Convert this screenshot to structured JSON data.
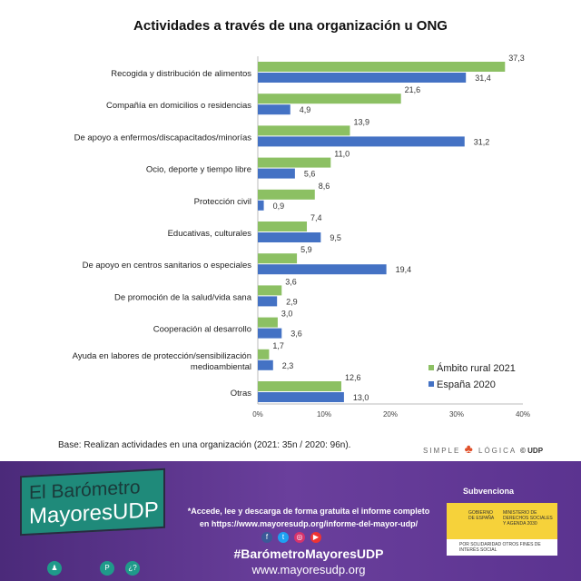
{
  "chart_data": {
    "type": "bar",
    "orientation": "horizontal",
    "title": "Actividades a través de una organización u ONG",
    "categories": [
      "Recogida y distribución de alimentos",
      "Compañía en domicilios o residencias",
      "De apoyo a enfermos/discapacitados/minorías",
      "Ocio, deporte y tiempo libre",
      "Protección civil",
      "Educativas, culturales",
      "De apoyo en centros sanitarios o especiales",
      "De promoción de la salud/vida sana",
      "Cooperación al desarrollo",
      "Ayuda en labores de protección/sensibilización medioambiental",
      "Otras"
    ],
    "series": [
      {
        "name": "Ámbito rural 2021",
        "color": "#8cc063",
        "values": [
          37.3,
          21.6,
          13.9,
          11.0,
          8.6,
          7.4,
          5.9,
          3.6,
          3.0,
          1.7,
          12.6
        ]
      },
      {
        "name": "España 2020",
        "color": "#4472c4",
        "values": [
          31.4,
          4.9,
          31.2,
          5.6,
          0.9,
          9.5,
          19.4,
          2.9,
          3.6,
          2.3,
          13.0
        ]
      }
    ],
    "xlim": [
      0,
      40
    ],
    "xticks": [
      "0%",
      "10%",
      "20%",
      "30%",
      "40%"
    ],
    "legend": "bottom-right",
    "grid": false
  },
  "base_note": "Base: Realizan actividades en una organización (2021: 35n / 2020: 96n).",
  "logo": {
    "left": "SIMPLE",
    "right": "LÓGICA",
    "copyright": "© UDP"
  },
  "footer": {
    "brand_line1": "El Barómetro",
    "brand_line2": "MayoresUDP",
    "promo_line1": "*Accede, lee y descarga de forma gratuita el informe completo",
    "promo_line2": "en https://www.mayoresudp.org/informe-del-mayor-udp/",
    "hashtag": "#BarómetroMayoresUDP",
    "website": "www.mayoresudp.org",
    "subvenciona": "Subvenciona",
    "gov_left": "GOBIERNO DE ESPAÑA",
    "gov_right": "MINISTERIO DE DERECHOS SOCIALES Y AGENDA 2030",
    "gov_bottom": "POR SOLIDARIDAD OTROS FINES DE INTERÉS SOCIAL"
  }
}
